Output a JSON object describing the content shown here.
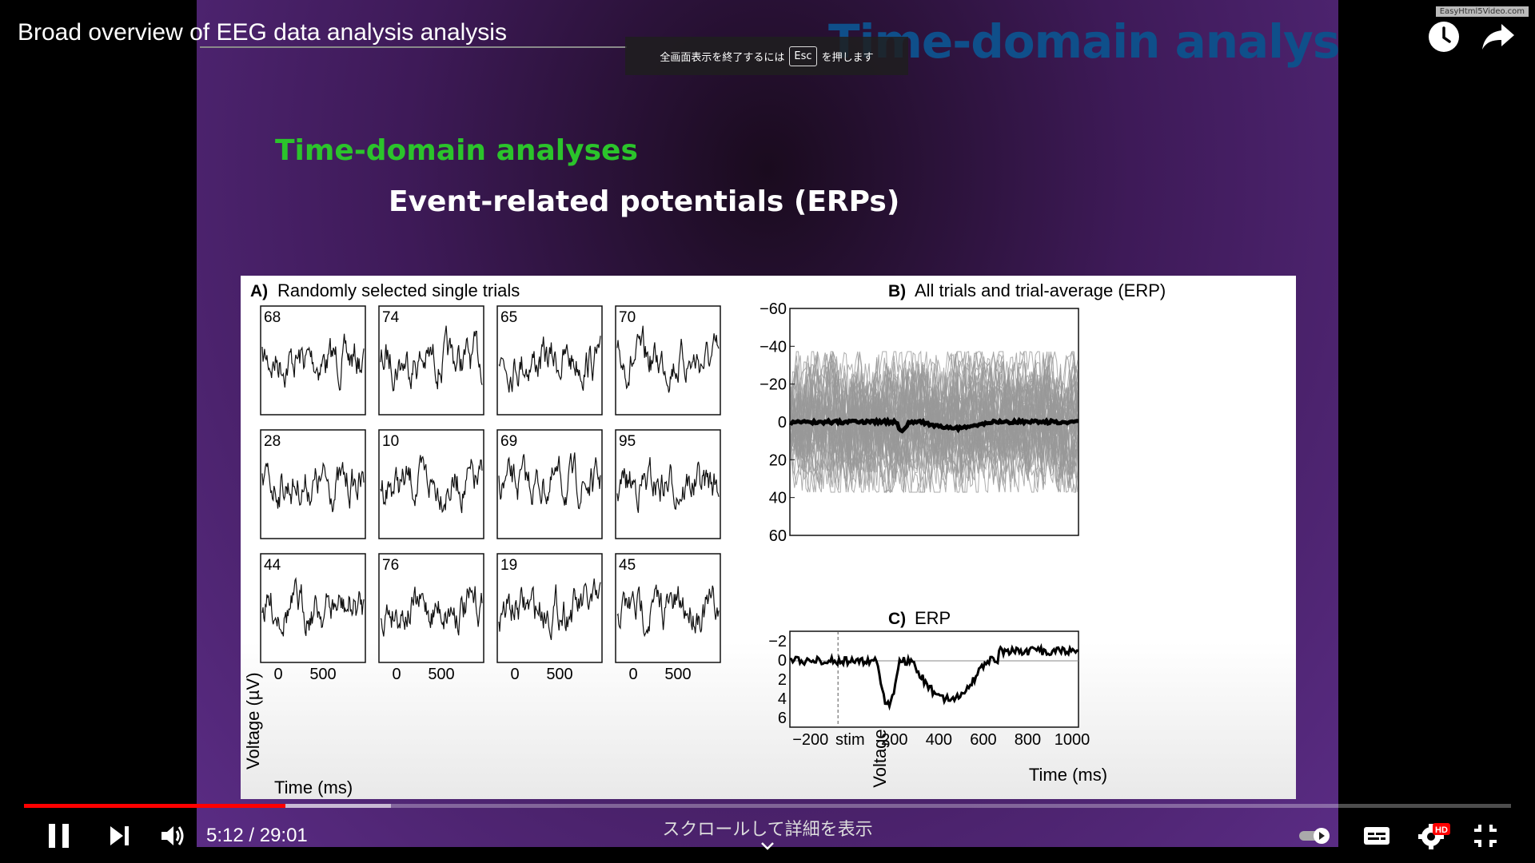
{
  "video": {
    "title": "Broad overview of EEG data analysis analysis",
    "esc_prefix": "全画面表示を終了するには",
    "esc_key": "Esc",
    "esc_suffix": "を押します",
    "watermark": "EasyHtml5Video.com",
    "time_display": "5:12 / 29:01",
    "progress_fraction": 0.176,
    "buffered_fraction": 0.247,
    "scroll_hint": "スクロールして詳細を表示",
    "hd_badge": "HD",
    "icons": [
      "watch-later-icon",
      "share-icon",
      "pause-icon",
      "next-icon",
      "volume-icon",
      "autoplay-toggle-icon",
      "subtitles-icon",
      "settings-icon",
      "exit-fullscreen-icon"
    ],
    "accent_color": "#ff0000"
  },
  "slide": {
    "ghost_title": "Time-domain analyses",
    "heading": "Time-domain analyses",
    "subheading": "Event-related potentials (ERPs)",
    "heading_color": "#2bc42b",
    "panel_a": {
      "label": "A)",
      "title": "Randomly selected single trials",
      "trial_numbers": [
        "68",
        "74",
        "65",
        "70",
        "28",
        "10",
        "69",
        "95",
        "44",
        "76",
        "19",
        "45"
      ],
      "x_ticks": [
        "0",
        "500"
      ],
      "xlabel": "Time (ms)",
      "ylabel": "Voltage (µV)"
    },
    "panel_b": {
      "label": "B)",
      "title": "All trials and trial-average (ERP)",
      "y_ticks": [
        "−60",
        "−40",
        "−20",
        "0",
        "20",
        "40",
        "60"
      ]
    },
    "panel_c": {
      "label": "C)",
      "title": "ERP",
      "y_ticks": [
        "−2",
        "0",
        "2",
        "4",
        "6"
      ],
      "x_ticks": [
        "−200",
        "stim",
        "200",
        "400",
        "600",
        "800",
        "1000"
      ],
      "xlabel": "Time (ms)",
      "ylabel": "Voltage (µV)"
    }
  }
}
